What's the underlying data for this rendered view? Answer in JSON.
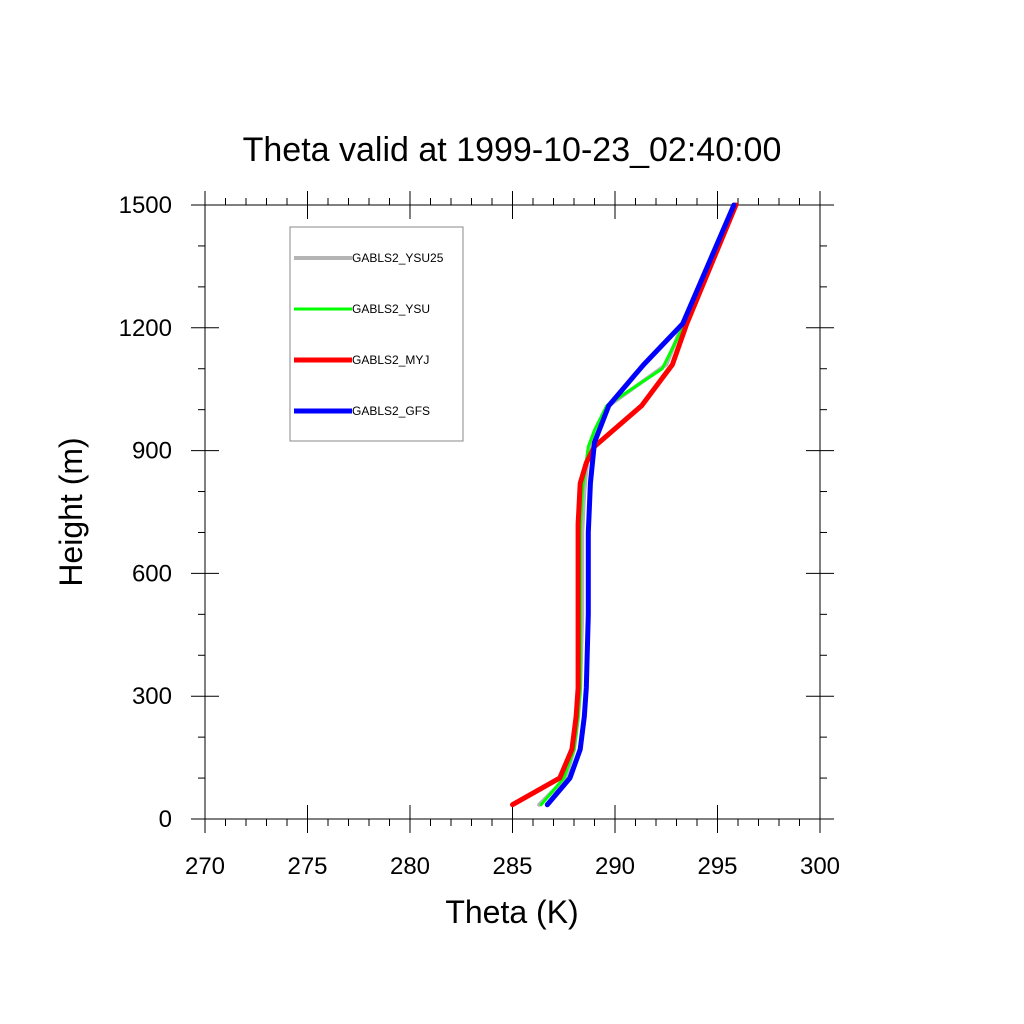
{
  "chart_data": {
    "type": "line",
    "title": "Theta valid at 1999-10-23_02:40:00",
    "xlabel": "Theta (K)",
    "ylabel": "Height (m)",
    "xlim": [
      270,
      300
    ],
    "ylim": [
      0,
      1500
    ],
    "xticks": [
      270,
      275,
      280,
      285,
      290,
      295,
      300
    ],
    "yticks": [
      0,
      300,
      600,
      900,
      1200,
      1500
    ],
    "grid": false,
    "legend_position": "top-left",
    "series": [
      {
        "name": "GABLS2_YSU25",
        "color": "#b4b4b4",
        "x": [
          286.3,
          287.6,
          288.0,
          288.2,
          288.3,
          288.4,
          288.4,
          288.5,
          288.7,
          289.2,
          289.7,
          292.5,
          293.3,
          295.9
        ],
        "y": [
          35,
          100,
          170,
          250,
          320,
          500,
          700,
          800,
          900,
          950,
          1010,
          1110,
          1210,
          1500
        ]
      },
      {
        "name": "GABLS2_YSU",
        "color": "#00ff00",
        "x": [
          286.4,
          287.5,
          288.0,
          288.2,
          288.3,
          288.3,
          288.3,
          288.4,
          288.7,
          289.0,
          289.6,
          292.3,
          293.3,
          295.9
        ],
        "y": [
          35,
          100,
          170,
          250,
          320,
          500,
          700,
          800,
          910,
          950,
          1010,
          1100,
          1200,
          1500
        ]
      },
      {
        "name": "GABLS2_MYJ",
        "color": "#ff0000",
        "x": [
          285.0,
          287.3,
          287.9,
          288.1,
          288.2,
          288.2,
          288.2,
          288.3,
          288.6,
          289.0,
          291.3,
          292.8,
          293.5,
          295.9
        ],
        "y": [
          35,
          100,
          170,
          250,
          320,
          500,
          720,
          820,
          870,
          910,
          1010,
          1110,
          1210,
          1500
        ]
      },
      {
        "name": "GABLS2_GFS",
        "color": "#0000ff",
        "x": [
          286.7,
          287.8,
          288.3,
          288.5,
          288.6,
          288.7,
          288.7,
          288.8,
          289.0,
          289.7,
          291.4,
          293.3,
          295.8
        ],
        "y": [
          35,
          100,
          170,
          250,
          320,
          500,
          700,
          820,
          920,
          1010,
          1110,
          1210,
          1500
        ]
      }
    ]
  }
}
